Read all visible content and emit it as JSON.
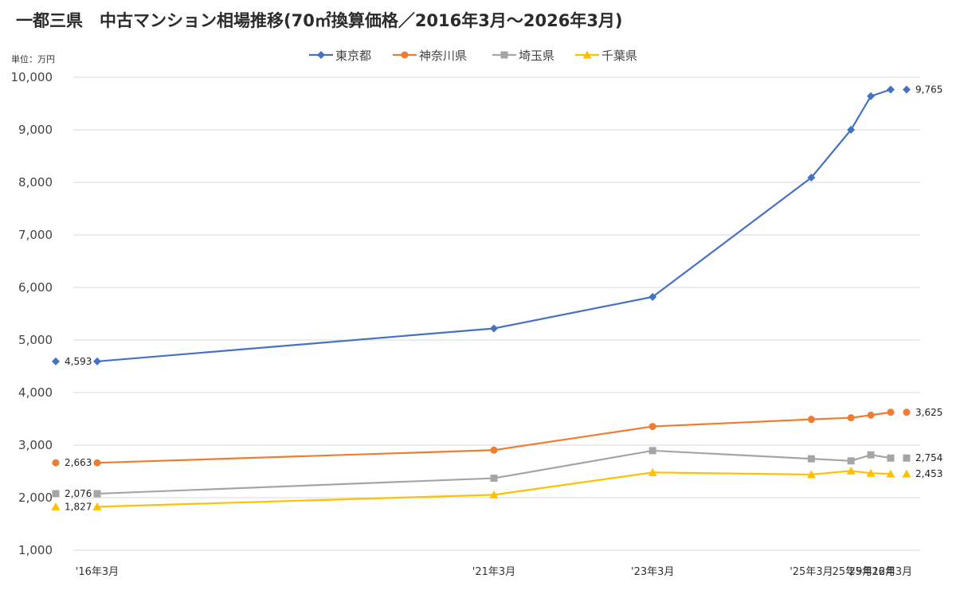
{
  "chart_data": {
    "type": "line",
    "title": "一都三県　中古マンション相場推移(70㎡換算価格／2016年3月～2026年3月)",
    "unit_label": "単位：万円",
    "ylim": [
      1000,
      10000
    ],
    "y_ticks": [
      "1,000",
      "2,000",
      "3,000",
      "4,000",
      "5,000",
      "6,000",
      "7,000",
      "8,000",
      "9,000",
      "10,000"
    ],
    "categories": [
      "'16年3月",
      "'21年3月",
      "'23年3月",
      "'25年3月",
      "'25年9月",
      "'25年12月",
      "'26年3月"
    ],
    "x_positions": [
      2016.25,
      2021.25,
      2023.25,
      2025.25,
      2025.75,
      2026.0,
      2026.25
    ],
    "grid": true,
    "legend_position": "top-center",
    "series": [
      {
        "name": "東京都",
        "color": "#4472C4",
        "marker": "diamond",
        "values": [
          4593,
          5220,
          5820,
          8090,
          9000,
          9640,
          9765
        ],
        "start_label": "4,593",
        "end_label": "9,765"
      },
      {
        "name": "神奈川県",
        "color": "#ED7D31",
        "marker": "circle",
        "values": [
          2663,
          2905,
          3355,
          3490,
          3520,
          3570,
          3625
        ],
        "start_label": "2,663",
        "end_label": "3,625"
      },
      {
        "name": "埼玉県",
        "color": "#A5A5A5",
        "marker": "square",
        "values": [
          2076,
          2370,
          2895,
          2740,
          2700,
          2815,
          2754
        ],
        "start_label": "2,076",
        "end_label": "2,754"
      },
      {
        "name": "千葉県",
        "color": "#FFC000",
        "marker": "triangle",
        "values": [
          1827,
          2055,
          2480,
          2440,
          2510,
          2465,
          2453
        ],
        "start_label": "1,827",
        "end_label": "2,453"
      }
    ]
  }
}
